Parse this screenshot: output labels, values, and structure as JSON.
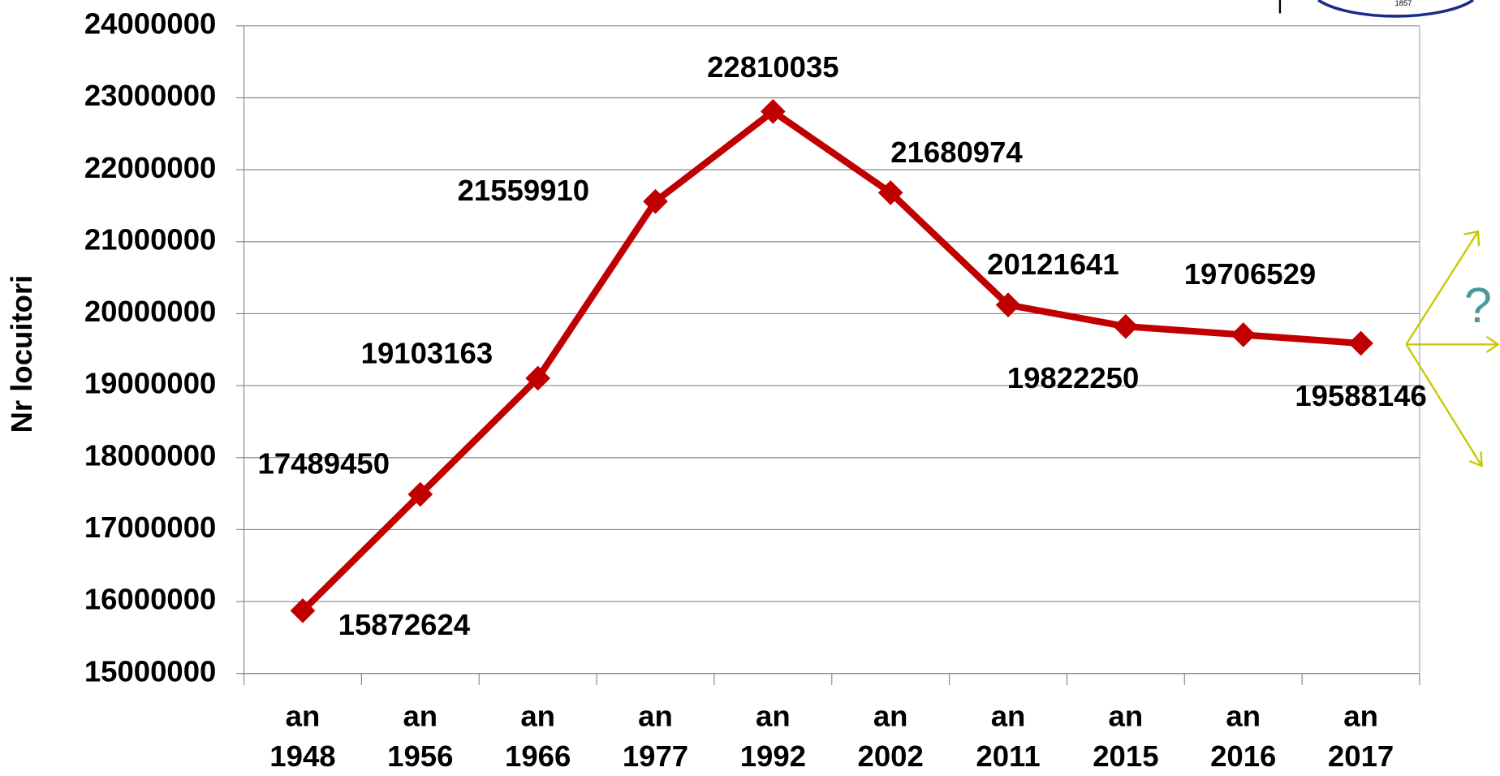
{
  "chart_data": {
    "type": "line",
    "y_label": "Nr locuitori",
    "categories": [
      "an 1948",
      "an 1956",
      "an 1966",
      "an 1977",
      "an 1992",
      "an 2002",
      "an 2011",
      "an 2015",
      "an 2016",
      "an 2017"
    ],
    "series": [
      {
        "name": "Nr locuitori",
        "color": "#c00000",
        "values": [
          15872624,
          17489450,
          19103163,
          21559910,
          22810035,
          21680974,
          20121641,
          19822250,
          19706529,
          19588146
        ]
      }
    ],
    "ylim": [
      15000000,
      24000000
    ],
    "yticks": [
      15000000,
      16000000,
      17000000,
      18000000,
      19000000,
      20000000,
      21000000,
      22000000,
      23000000,
      24000000
    ],
    "grid": true,
    "annotation": "?",
    "logo_text": "1857"
  }
}
